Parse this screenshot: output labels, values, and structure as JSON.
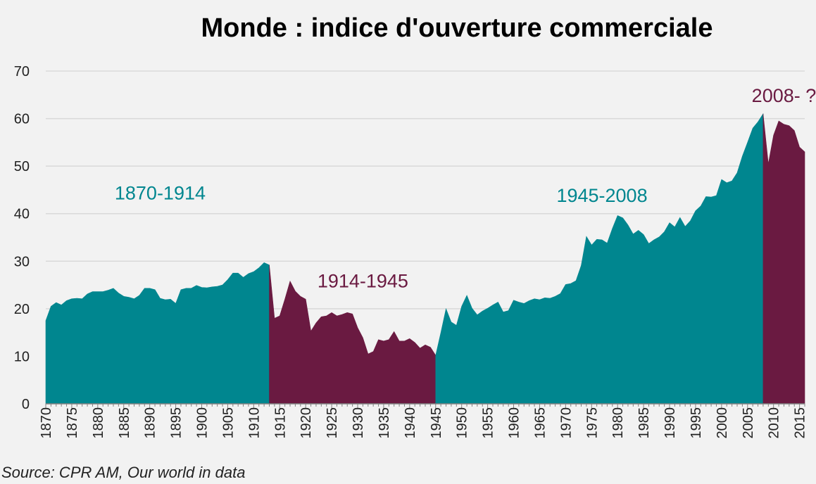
{
  "chart_data": {
    "type": "area",
    "title": "Monde : indice d'ouverture commerciale",
    "source": "Source: CPR AM, Our world in data",
    "xlabel": "",
    "ylabel": "",
    "ylim": [
      0,
      70
    ],
    "yticks": [
      0,
      10,
      20,
      30,
      40,
      50,
      60,
      70
    ],
    "xlim": [
      1870,
      2016
    ],
    "xtick_step": 5,
    "grid": true,
    "colors": {
      "expansion": "#00868f",
      "contraction": "#6a1a41",
      "background": "#f2f2f2"
    },
    "annotations": [
      {
        "text": "1870-1914",
        "x": 1892,
        "y": 43,
        "color": "#00868f"
      },
      {
        "text": "1914-1945",
        "x": 1931,
        "y": 24.5,
        "color": "#6a1a41"
      },
      {
        "text": "1945-2008",
        "x": 1977,
        "y": 42.5,
        "color": "#00868f"
      },
      {
        "text": "2008- ?",
        "x": 2012,
        "y": 63.5,
        "color": "#6a1a41"
      }
    ],
    "periods": [
      {
        "label": "1870-1914",
        "color": "#00868f",
        "x": [
          1870,
          1871,
          1872,
          1873,
          1874,
          1875,
          1876,
          1877,
          1878,
          1879,
          1880,
          1881,
          1882,
          1883,
          1884,
          1885,
          1886,
          1887,
          1888,
          1889,
          1890,
          1891,
          1892,
          1893,
          1894,
          1895,
          1896,
          1897,
          1898,
          1899,
          1900,
          1901,
          1902,
          1903,
          1904,
          1905,
          1906,
          1907,
          1908,
          1909,
          1910,
          1911,
          1912,
          1913
        ],
        "values": [
          17.5,
          20.5,
          21.3,
          20.8,
          21.7,
          22.1,
          22.2,
          22.1,
          23.1,
          23.6,
          23.6,
          23.6,
          23.9,
          24.3,
          23.3,
          22.6,
          22.4,
          22.1,
          22.8,
          24.3,
          24.3,
          24.0,
          22.2,
          21.9,
          22.0,
          21.1,
          24.0,
          24.3,
          24.3,
          24.9,
          24.5,
          24.4,
          24.6,
          24.7,
          25.0,
          26.1,
          27.5,
          27.5,
          26.6,
          27.4,
          27.8,
          28.6,
          29.7,
          29.2
        ]
      },
      {
        "label": "1914-1945",
        "color": "#6a1a41",
        "x": [
          1913,
          1914,
          1915,
          1916,
          1917,
          1918,
          1919,
          1920,
          1921,
          1922,
          1923,
          1924,
          1925,
          1926,
          1927,
          1928,
          1929,
          1930,
          1931,
          1932,
          1933,
          1934,
          1935,
          1936,
          1937,
          1938,
          1939,
          1940,
          1941,
          1942,
          1943,
          1944,
          1945
        ],
        "values": [
          29.2,
          18.0,
          18.5,
          22.0,
          25.8,
          23.7,
          22.6,
          22.0,
          15.3,
          17.0,
          18.3,
          18.5,
          19.2,
          18.5,
          18.8,
          19.2,
          18.9,
          16.0,
          13.9,
          10.5,
          11.0,
          13.5,
          13.2,
          13.5,
          15.2,
          13.2,
          13.2,
          13.7,
          12.9,
          11.7,
          12.4,
          11.9,
          10.2
        ]
      },
      {
        "label": "1945-2008",
        "color": "#00868f",
        "x": [
          1945,
          1946,
          1947,
          1948,
          1949,
          1950,
          1951,
          1952,
          1953,
          1954,
          1955,
          1956,
          1957,
          1958,
          1959,
          1960,
          1961,
          1962,
          1963,
          1964,
          1965,
          1966,
          1967,
          1968,
          1969,
          1970,
          1971,
          1972,
          1973,
          1974,
          1975,
          1976,
          1977,
          1978,
          1979,
          1980,
          1981,
          1982,
          1983,
          1984,
          1985,
          1986,
          1987,
          1988,
          1989,
          1990,
          1991,
          1992,
          1993,
          1994,
          1995,
          1996,
          1997,
          1998,
          1999,
          2000,
          2001,
          2002,
          2003,
          2004,
          2005,
          2006,
          2007,
          2008
        ],
        "values": [
          10.2,
          15.0,
          20.0,
          17.2,
          16.5,
          20.5,
          22.8,
          20.1,
          18.7,
          19.5,
          20.1,
          20.8,
          21.4,
          19.3,
          19.6,
          21.8,
          21.4,
          21.1,
          21.7,
          22.1,
          21.9,
          22.3,
          22.2,
          22.6,
          23.2,
          25.1,
          25.3,
          25.9,
          29.1,
          35.2,
          33.4,
          34.6,
          34.5,
          33.8,
          36.9,
          39.6,
          39.1,
          37.6,
          35.7,
          36.5,
          35.6,
          33.7,
          34.5,
          35.1,
          36.2,
          38.1,
          37.2,
          39.2,
          37.3,
          38.5,
          40.6,
          41.6,
          43.6,
          43.5,
          43.8,
          47.2,
          46.5,
          46.9,
          48.6,
          52.1,
          55.0,
          58.0,
          59.3,
          61.0
        ]
      },
      {
        "label": "2008- ?",
        "color": "#6a1a41",
        "x": [
          2008,
          2009,
          2010,
          2011,
          2012,
          2013,
          2014,
          2015,
          2016
        ],
        "values": [
          61.0,
          50.5,
          56.5,
          59.5,
          58.8,
          58.5,
          57.5,
          54.0,
          53.0
        ]
      }
    ]
  }
}
